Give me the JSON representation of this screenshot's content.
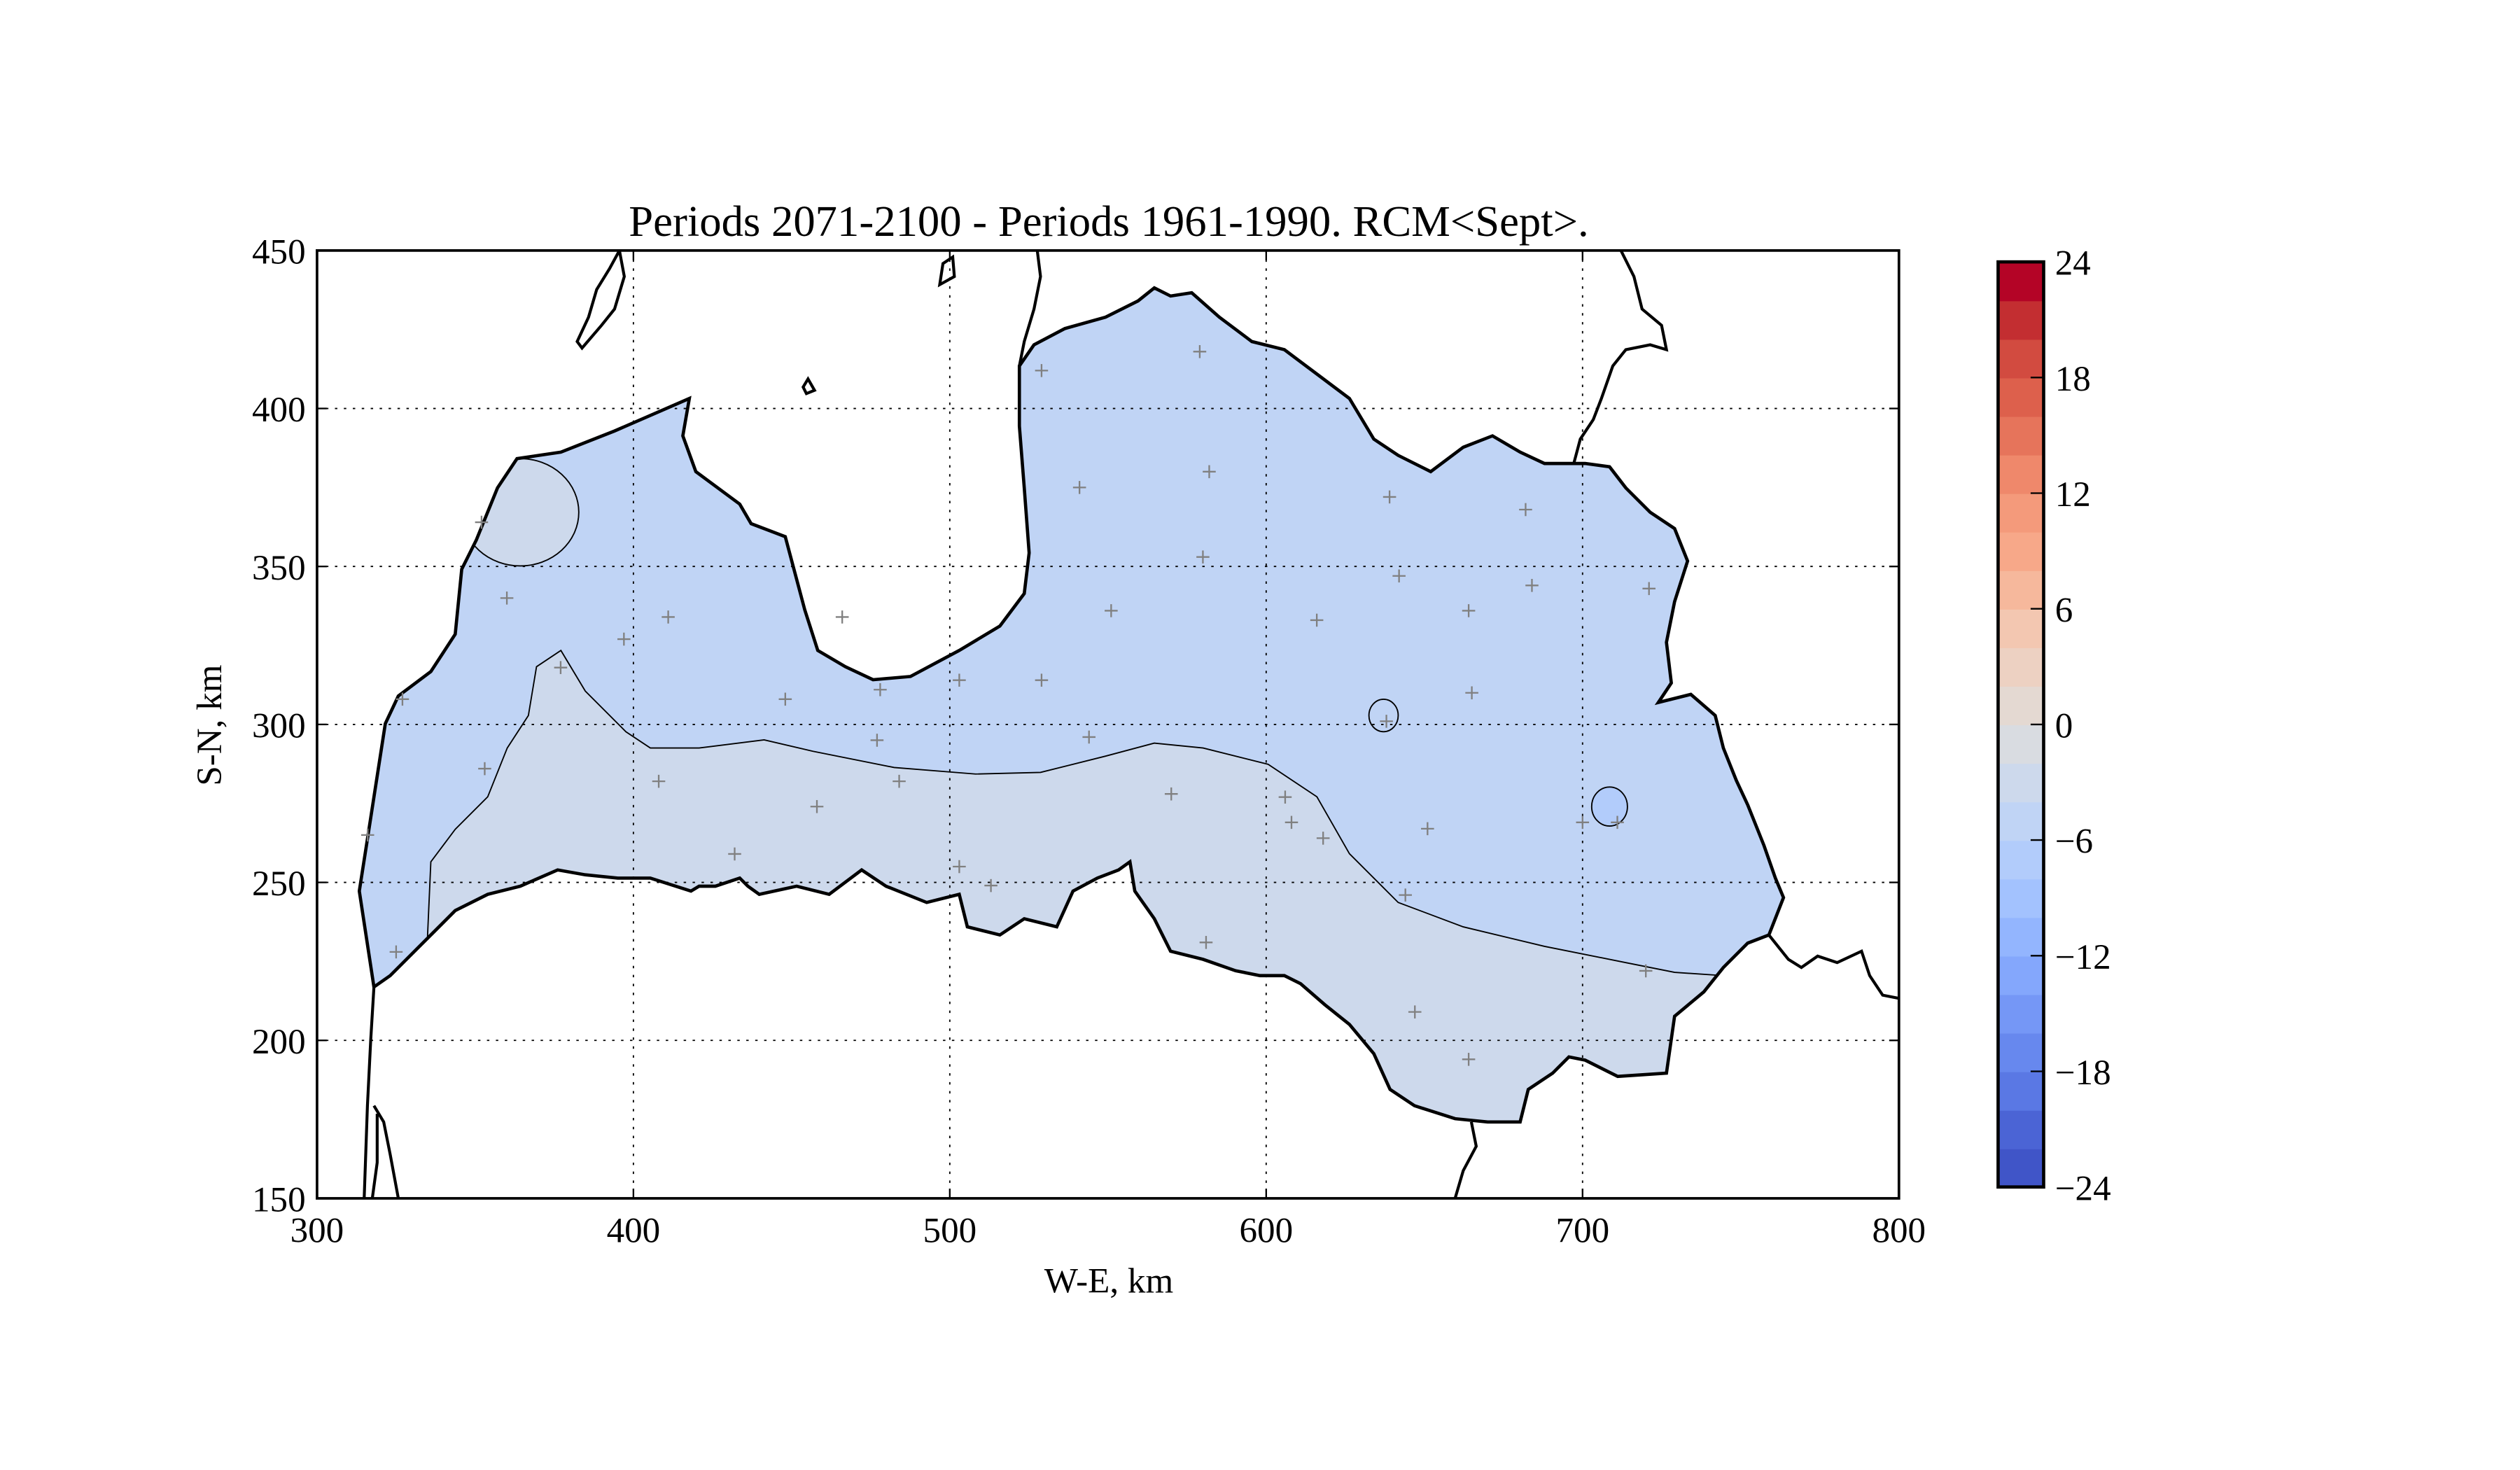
{
  "chart_data": {
    "type": "contour-map",
    "title": "Periods 2071-2100 - Periods 1961-1990. RCM<Sept>.",
    "xlabel": "W-E, km",
    "ylabel": "S-N, km",
    "xlim": [
      300,
      800
    ],
    "ylim": [
      150,
      450
    ],
    "xticks": [
      300,
      400,
      500,
      600,
      700,
      800
    ],
    "yticks": [
      150,
      200,
      250,
      300,
      350,
      400,
      450
    ],
    "grid": true,
    "grid_style": "dotted",
    "colorbar": {
      "position": "right",
      "range": [
        -24,
        24
      ],
      "level_step": 2,
      "ticks": [
        24,
        18,
        12,
        6,
        0,
        -6,
        -12,
        -18,
        -24
      ],
      "tick_labels": [
        "24",
        "18",
        "12",
        "6",
        "0",
        "−6",
        "−12",
        "−18",
        "−24"
      ],
      "colormap": "coolwarm",
      "colors_bottom_to_top": [
        "#4055c8",
        "#4b64d5",
        "#5a78e4",
        "#6788ee",
        "#7597f6",
        "#84a7fc",
        "#93b5fe",
        "#a3c2fe",
        "#b2ccfb",
        "#c0d4f5",
        "#cdd9ec",
        "#d9dce1",
        "#e4d9d2",
        "#edd1c2",
        "#f3c7b1",
        "#f6b89c",
        "#f7a889",
        "#f49a7b",
        "#ef886b",
        "#e6745b",
        "#dd604c",
        "#d24b40",
        "#c32e31",
        "#b40426"
      ]
    },
    "regions": [
      {
        "range": [
          -6,
          -4
        ],
        "color": "#c0d4f5",
        "where": "north and east"
      },
      {
        "range": [
          -4,
          -2
        ],
        "color": "#cdd9ec",
        "where": "south-central band and north-west spot"
      },
      {
        "range": [
          -8,
          -6
        ],
        "color": "#b2ccfb",
        "where": "small spot in east"
      }
    ],
    "stations": [
      [
        352,
        364
      ],
      [
        360,
        340
      ],
      [
        327,
        308
      ],
      [
        316,
        265
      ],
      [
        325,
        228
      ],
      [
        377,
        318
      ],
      [
        397,
        327
      ],
      [
        411,
        334
      ],
      [
        353,
        286
      ],
      [
        408,
        282
      ],
      [
        448,
        308
      ],
      [
        458,
        274
      ],
      [
        478,
        311
      ],
      [
        477,
        295
      ],
      [
        484,
        282
      ],
      [
        432,
        259
      ],
      [
        503,
        314
      ],
      [
        503,
        255
      ],
      [
        513,
        249
      ],
      [
        466,
        334
      ],
      [
        529,
        314
      ],
      [
        529,
        412
      ],
      [
        544,
        296
      ],
      [
        551,
        336
      ],
      [
        541,
        375
      ],
      [
        579,
        418
      ],
      [
        582,
        380
      ],
      [
        580,
        353
      ],
      [
        570,
        278
      ],
      [
        581,
        231
      ],
      [
        606,
        277
      ],
      [
        608,
        269
      ],
      [
        618,
        264
      ],
      [
        616,
        333
      ],
      [
        639,
        372
      ],
      [
        642,
        347
      ],
      [
        638,
        301
      ],
      [
        644,
        246
      ],
      [
        651,
        267
      ],
      [
        647,
        209
      ],
      [
        664,
        194
      ],
      [
        664,
        336
      ],
      [
        665,
        310
      ],
      [
        682,
        368
      ],
      [
        684,
        344
      ],
      [
        700,
        269
      ],
      [
        711,
        269
      ],
      [
        721,
        343
      ],
      [
        720,
        222
      ]
    ]
  }
}
